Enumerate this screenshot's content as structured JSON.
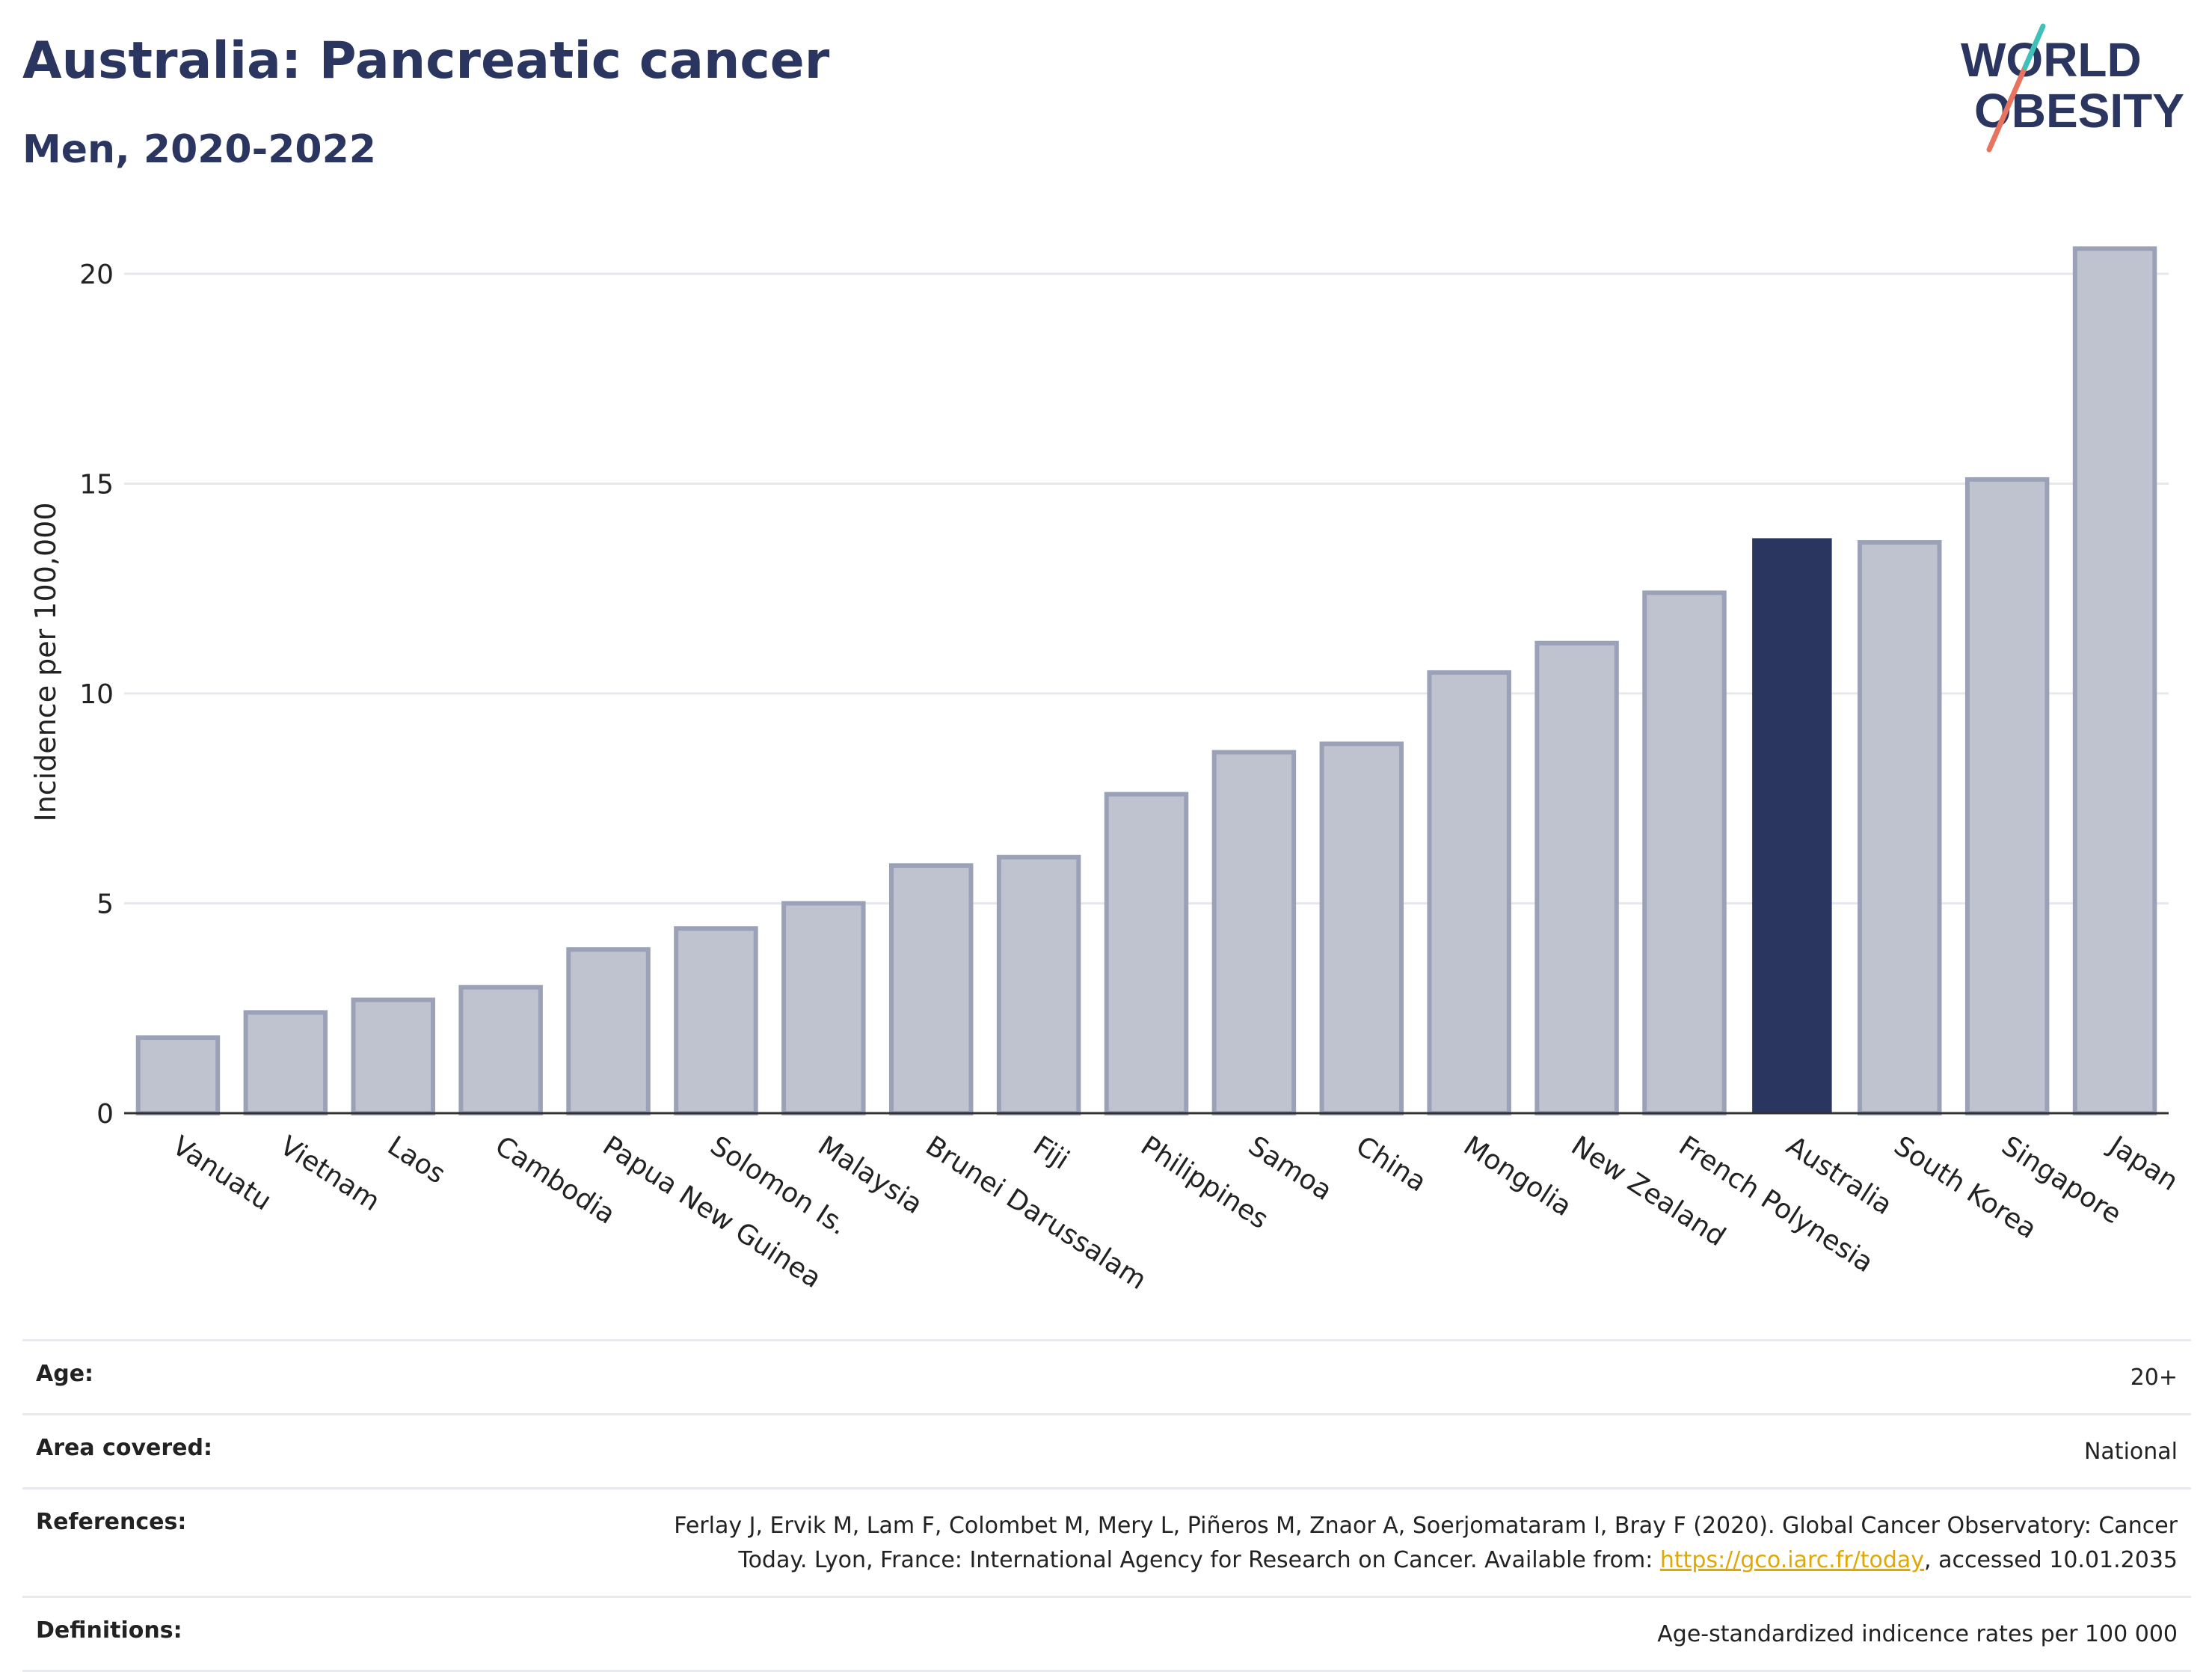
{
  "title": "Australia: Pancreatic cancer",
  "subtitle": "Men, 2020-2022",
  "logo": {
    "line1": "WORLD",
    "line2": "OBESITY"
  },
  "colors": {
    "bar": "#bfc3d0",
    "bar_stroke": "#9ba2b8",
    "highlight": "#2b3660",
    "grid": "#e6e8ee"
  },
  "chart_data": {
    "type": "bar",
    "categories": [
      "Vanuatu",
      "Vietnam",
      "Laos",
      "Cambodia",
      "Papua New Guinea",
      "Solomon Is.",
      "Malaysia",
      "Brunei Darussalam",
      "Fiji",
      "Philippines",
      "Samoa",
      "China",
      "Mongolia",
      "New Zealand",
      "French Polynesia",
      "Australia",
      "South Korea",
      "Singapore",
      "Japan"
    ],
    "values": [
      1.8,
      2.4,
      2.7,
      3.0,
      3.9,
      4.4,
      5.0,
      5.9,
      6.1,
      7.6,
      8.6,
      8.8,
      10.5,
      11.2,
      12.4,
      13.7,
      13.6,
      15.1,
      20.6
    ],
    "highlight": "Australia",
    "ylabel": "Incidence per 100,000",
    "yticks": [
      "0",
      "5",
      "10",
      "15",
      "20"
    ],
    "ylim": [
      0,
      22
    ],
    "grid": true
  },
  "footer": {
    "age": {
      "label": "Age:",
      "value": "20+"
    },
    "area": {
      "label": "Area covered:",
      "value": "National"
    },
    "references": {
      "label": "References:",
      "line1": "Ferlay J, Ervik M, Lam F, Colombet M, Mery L, Piñeros M, Znaor A, Soerjomataram I, Bray F (2020). Global Cancer Observatory: Cancer",
      "line2_pre": "Today. Lyon, France: International Agency for Research on Cancer. Available from: ",
      "link": "https://gco.iarc.fr/today",
      "line2_post": ", accessed 10.01.2035"
    },
    "definitions": {
      "label": "Definitions:",
      "value": "Age-standardized indicence rates per 100 000"
    }
  }
}
